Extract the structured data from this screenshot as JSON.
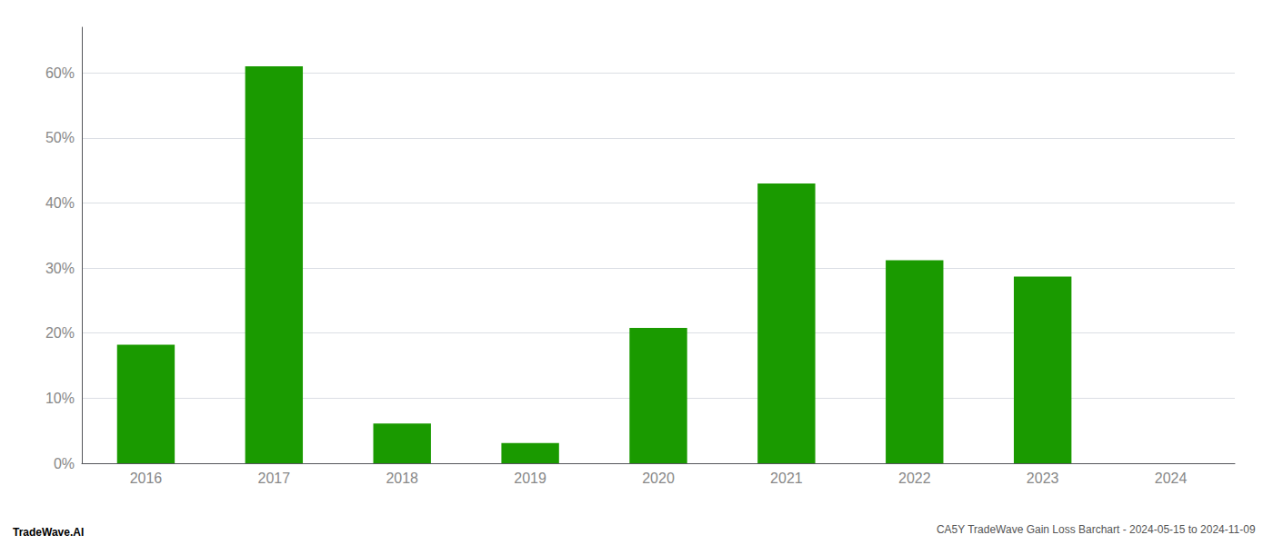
{
  "chart_data": {
    "type": "bar",
    "title": "CA5Y TradeWave Gain Loss Barchart - 2024-05-15 to 2024-11-09",
    "annotations": [
      "TradeWave.AI"
    ],
    "categories": [
      "2016",
      "2017",
      "2018",
      "2019",
      "2020",
      "2021",
      "2022",
      "2023",
      "2024"
    ],
    "values": [
      18.2,
      61.0,
      6.1,
      3.1,
      20.8,
      43.0,
      31.2,
      28.7,
      0.0
    ],
    "color": "#1a9a00",
    "ylim": [
      0,
      67
    ],
    "yticks": [
      {
        "value": 0,
        "label": "0%"
      },
      {
        "value": 10,
        "label": "10%"
      },
      {
        "value": 20,
        "label": "20%"
      },
      {
        "value": 30,
        "label": "30%"
      },
      {
        "value": 40,
        "label": "40%"
      },
      {
        "value": 50,
        "label": "50%"
      },
      {
        "value": 60,
        "label": "60%"
      }
    ],
    "grid": true
  }
}
